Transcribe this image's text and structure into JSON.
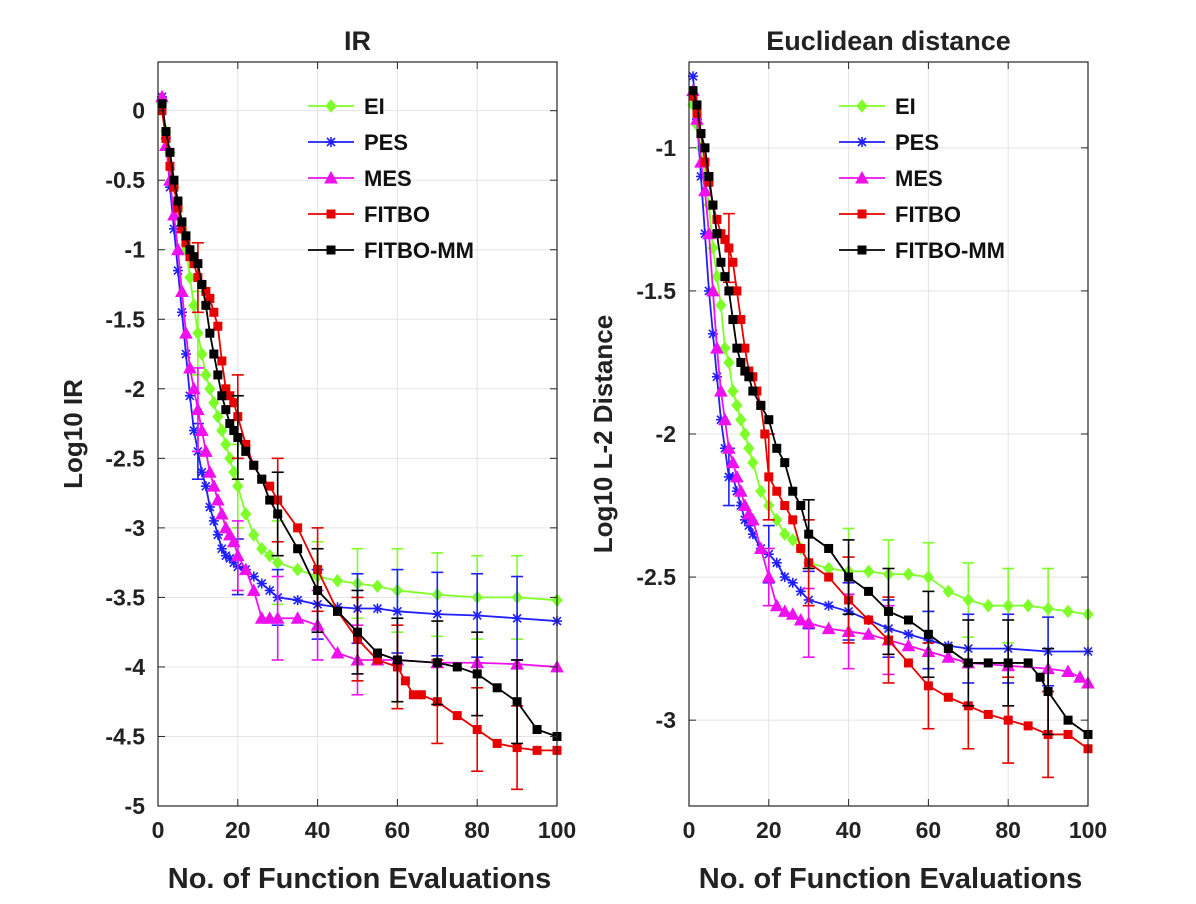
{
  "chart_data": [
    {
      "type": "line",
      "title": "IR",
      "xlabel": "No. of Function Evaluations",
      "ylabel": "Log10 IR",
      "xlim": [
        0,
        100
      ],
      "ylim": [
        -5,
        0.35
      ],
      "xticks": [
        0,
        20,
        40,
        60,
        80,
        100
      ],
      "yticks": [
        0,
        -0.5,
        -1,
        -1.5,
        -2,
        -2.5,
        -3,
        -3.5,
        -4,
        -4.5,
        -5
      ],
      "ytick_labels": [
        "0",
        "-0.5",
        "-1",
        "-1.5",
        "-2",
        "-2.5",
        "-3",
        "-3.5",
        "-4",
        "-4.5",
        "-5"
      ],
      "grid": true,
      "legend_position": "top-right",
      "series": [
        {
          "name": "EI",
          "color": "#7fff2a",
          "marker": "diamond",
          "x": [
            1,
            2,
            3,
            4,
            5,
            6,
            7,
            8,
            9,
            10,
            11,
            12,
            13,
            14,
            15,
            16,
            17,
            18,
            19,
            20,
            22,
            24,
            26,
            28,
            30,
            35,
            40,
            45,
            50,
            55,
            60,
            70,
            80,
            90,
            100
          ],
          "y": [
            0.05,
            -0.15,
            -0.3,
            -0.55,
            -0.7,
            -0.85,
            -1.0,
            -1.2,
            -1.4,
            -1.6,
            -1.75,
            -1.9,
            -2.0,
            -2.1,
            -2.2,
            -2.3,
            -2.4,
            -2.5,
            -2.6,
            -2.7,
            -2.9,
            -3.05,
            -3.15,
            -3.2,
            -3.25,
            -3.3,
            -3.35,
            -3.38,
            -3.4,
            -3.42,
            -3.45,
            -3.48,
            -3.5,
            -3.5,
            -3.52
          ],
          "error_x": [
            10,
            20,
            30,
            40,
            50,
            60,
            70,
            80,
            90
          ],
          "error_y": [
            0.3,
            0.3,
            0.3,
            0.25,
            0.25,
            0.3,
            0.3,
            0.3,
            0.3
          ]
        },
        {
          "name": "PES",
          "color": "#1f1fff",
          "marker": "asterisk",
          "x": [
            1,
            2,
            3,
            4,
            5,
            6,
            7,
            8,
            9,
            10,
            11,
            12,
            13,
            14,
            15,
            16,
            17,
            18,
            19,
            20,
            22,
            24,
            26,
            28,
            30,
            35,
            40,
            45,
            50,
            55,
            60,
            70,
            80,
            90,
            100
          ],
          "y": [
            0.1,
            -0.2,
            -0.55,
            -0.85,
            -1.15,
            -1.45,
            -1.75,
            -2.05,
            -2.3,
            -2.45,
            -2.6,
            -2.7,
            -2.85,
            -2.95,
            -3.05,
            -3.15,
            -3.2,
            -3.22,
            -3.25,
            -3.28,
            -3.3,
            -3.35,
            -3.4,
            -3.45,
            -3.5,
            -3.52,
            -3.55,
            -3.57,
            -3.58,
            -3.58,
            -3.6,
            -3.62,
            -3.63,
            -3.65,
            -3.67
          ],
          "error_x": [
            10,
            20,
            30,
            40,
            50,
            60,
            70,
            80,
            90
          ],
          "error_y": [
            0.2,
            0.2,
            0.2,
            0.25,
            0.25,
            0.3,
            0.3,
            0.3,
            0.3
          ]
        },
        {
          "name": "MES",
          "color": "#ee11ee",
          "marker": "triangle",
          "x": [
            1,
            2,
            3,
            4,
            5,
            6,
            7,
            8,
            9,
            10,
            11,
            12,
            13,
            14,
            15,
            16,
            17,
            18,
            19,
            20,
            22,
            24,
            26,
            28,
            30,
            35,
            40,
            45,
            50,
            55,
            60,
            70,
            80,
            90,
            100
          ],
          "y": [
            0.1,
            -0.25,
            -0.5,
            -0.75,
            -1.0,
            -1.3,
            -1.6,
            -1.85,
            -2.0,
            -2.15,
            -2.3,
            -2.45,
            -2.6,
            -2.7,
            -2.8,
            -2.9,
            -3.0,
            -3.05,
            -3.1,
            -3.2,
            -3.3,
            -3.45,
            -3.65,
            -3.65,
            -3.65,
            -3.65,
            -3.7,
            -3.9,
            -3.95,
            -3.95,
            -3.95,
            -3.97,
            -3.97,
            -3.98,
            -4.0
          ],
          "error_x": [
            10,
            20,
            30,
            40,
            50
          ],
          "error_y": [
            0.3,
            0.25,
            0.3,
            0.25,
            0.25
          ]
        },
        {
          "name": "FITBO",
          "color": "#e60000",
          "marker": "square",
          "x": [
            1,
            2,
            3,
            4,
            5,
            6,
            7,
            8,
            9,
            10,
            11,
            12,
            13,
            14,
            15,
            16,
            17,
            18,
            19,
            20,
            22,
            24,
            26,
            28,
            30,
            35,
            40,
            45,
            50,
            55,
            60,
            62,
            64,
            66,
            70,
            75,
            80,
            85,
            90,
            95,
            100
          ],
          "y": [
            0.0,
            -0.2,
            -0.4,
            -0.55,
            -0.7,
            -0.85,
            -0.95,
            -1.05,
            -1.1,
            -1.2,
            -1.25,
            -1.3,
            -1.35,
            -1.45,
            -1.55,
            -1.8,
            -2.0,
            -2.05,
            -2.1,
            -2.2,
            -2.4,
            -2.55,
            -2.65,
            -2.7,
            -2.8,
            -3.0,
            -3.3,
            -3.6,
            -3.8,
            -3.95,
            -4.0,
            -4.1,
            -4.2,
            -4.2,
            -4.25,
            -4.35,
            -4.45,
            -4.55,
            -4.58,
            -4.6,
            -4.6
          ],
          "error_x": [
            10,
            20,
            30,
            40,
            50,
            60,
            70,
            80,
            90
          ],
          "error_y": [
            0.25,
            0.3,
            0.3,
            0.3,
            0.3,
            0.3,
            0.3,
            0.3,
            0.3
          ]
        },
        {
          "name": "FITBO-MM",
          "color": "#000000",
          "marker": "square",
          "x": [
            1,
            2,
            3,
            4,
            5,
            6,
            7,
            8,
            9,
            10,
            11,
            12,
            13,
            14,
            15,
            16,
            17,
            18,
            19,
            20,
            22,
            24,
            26,
            28,
            30,
            35,
            40,
            45,
            50,
            55,
            60,
            70,
            75,
            80,
            85,
            90,
            95,
            100
          ],
          "y": [
            0.05,
            -0.15,
            -0.3,
            -0.5,
            -0.65,
            -0.8,
            -0.9,
            -1.0,
            -1.05,
            -1.1,
            -1.25,
            -1.4,
            -1.6,
            -1.75,
            -1.9,
            -2.05,
            -2.15,
            -2.25,
            -2.3,
            -2.35,
            -2.45,
            -2.55,
            -2.65,
            -2.8,
            -2.9,
            -3.15,
            -3.45,
            -3.6,
            -3.75,
            -3.9,
            -3.95,
            -3.97,
            -4.0,
            -4.05,
            -4.15,
            -4.25,
            -4.45,
            -4.5
          ],
          "error_x": [
            20,
            30,
            40,
            50,
            60,
            70,
            80,
            90
          ],
          "error_y": [
            0.3,
            0.3,
            0.3,
            0.3,
            0.3,
            0.3,
            0.3,
            0.3
          ]
        }
      ]
    },
    {
      "type": "line",
      "title": "Euclidean distance",
      "xlabel": "No. of Function Evaluations",
      "ylabel": "Log10 L-2 Distance",
      "xlim": [
        0,
        100
      ],
      "ylim": [
        -3.3,
        -0.7
      ],
      "xticks": [
        0,
        20,
        40,
        60,
        80,
        100
      ],
      "yticks": [
        -1,
        -1.5,
        -2,
        -2.5,
        -3
      ],
      "ytick_labels": [
        "-1",
        "-1.5",
        "-2",
        "-2.5",
        "-3"
      ],
      "grid": true,
      "legend_position": "top-right",
      "series": [
        {
          "name": "EI",
          "color": "#7fff2a",
          "marker": "diamond",
          "x": [
            1,
            2,
            3,
            4,
            5,
            6,
            7,
            8,
            9,
            10,
            11,
            12,
            13,
            14,
            15,
            16,
            18,
            20,
            22,
            24,
            26,
            28,
            30,
            35,
            40,
            45,
            50,
            55,
            60,
            65,
            70,
            75,
            80,
            85,
            90,
            95,
            100
          ],
          "y": [
            -0.85,
            -0.92,
            -1.0,
            -1.1,
            -1.2,
            -1.35,
            -1.45,
            -1.55,
            -1.7,
            -1.75,
            -1.85,
            -1.9,
            -1.95,
            -2.0,
            -2.05,
            -2.1,
            -2.2,
            -2.25,
            -2.3,
            -2.35,
            -2.37,
            -2.4,
            -2.45,
            -2.47,
            -2.48,
            -2.48,
            -2.49,
            -2.49,
            -2.5,
            -2.55,
            -2.58,
            -2.6,
            -2.6,
            -2.6,
            -2.61,
            -2.62,
            -2.63
          ],
          "error_x": [
            40,
            50,
            60,
            70,
            80,
            90
          ],
          "error_y": [
            0.15,
            0.12,
            0.12,
            0.13,
            0.13,
            0.14
          ]
        },
        {
          "name": "PES",
          "color": "#1f1fff",
          "marker": "asterisk",
          "x": [
            1,
            2,
            3,
            4,
            5,
            6,
            7,
            8,
            9,
            10,
            11,
            12,
            13,
            14,
            15,
            16,
            18,
            20,
            22,
            24,
            26,
            28,
            30,
            35,
            40,
            45,
            50,
            55,
            60,
            65,
            70,
            80,
            90,
            100
          ],
          "y": [
            -0.75,
            -0.9,
            -1.1,
            -1.3,
            -1.5,
            -1.65,
            -1.8,
            -1.95,
            -2.05,
            -2.15,
            -2.15,
            -2.2,
            -2.25,
            -2.3,
            -2.32,
            -2.35,
            -2.4,
            -2.42,
            -2.45,
            -2.5,
            -2.52,
            -2.55,
            -2.58,
            -2.6,
            -2.62,
            -2.65,
            -2.68,
            -2.7,
            -2.72,
            -2.74,
            -2.75,
            -2.75,
            -2.76,
            -2.76
          ],
          "error_x": [
            10,
            20,
            30,
            40,
            50,
            60,
            70,
            80,
            90
          ],
          "error_y": [
            0.1,
            0.1,
            0.1,
            0.1,
            0.1,
            0.1,
            0.12,
            0.12,
            0.12
          ]
        },
        {
          "name": "MES",
          "color": "#ee11ee",
          "marker": "triangle",
          "x": [
            1,
            2,
            3,
            4,
            5,
            6,
            7,
            8,
            9,
            10,
            11,
            12,
            13,
            14,
            15,
            16,
            18,
            20,
            22,
            24,
            26,
            28,
            30,
            35,
            40,
            45,
            50,
            55,
            60,
            65,
            70,
            80,
            90,
            95,
            98,
            100
          ],
          "y": [
            -0.8,
            -0.9,
            -1.05,
            -1.15,
            -1.3,
            -1.5,
            -1.7,
            -1.85,
            -1.95,
            -2.05,
            -2.1,
            -2.15,
            -2.2,
            -2.25,
            -2.28,
            -2.3,
            -2.4,
            -2.5,
            -2.6,
            -2.62,
            -2.63,
            -2.65,
            -2.66,
            -2.68,
            -2.69,
            -2.7,
            -2.72,
            -2.74,
            -2.76,
            -2.78,
            -2.8,
            -2.81,
            -2.82,
            -2.83,
            -2.85,
            -2.87
          ],
          "error_x": [
            20,
            30,
            40,
            50
          ],
          "error_y": [
            0.1,
            0.12,
            0.13,
            0.12
          ]
        },
        {
          "name": "FITBO",
          "color": "#e60000",
          "marker": "square",
          "x": [
            1,
            2,
            3,
            4,
            5,
            6,
            7,
            8,
            9,
            10,
            11,
            12,
            13,
            14,
            15,
            16,
            17,
            18,
            19,
            20,
            22,
            24,
            26,
            28,
            30,
            35,
            40,
            45,
            50,
            55,
            60,
            65,
            70,
            75,
            80,
            85,
            90,
            95,
            100
          ],
          "y": [
            -0.82,
            -0.88,
            -0.95,
            -1.05,
            -1.12,
            -1.2,
            -1.25,
            -1.3,
            -1.32,
            -1.35,
            -1.4,
            -1.5,
            -1.6,
            -1.7,
            -1.78,
            -1.8,
            -1.85,
            -1.9,
            -2.0,
            -2.15,
            -2.2,
            -2.25,
            -2.3,
            -2.4,
            -2.45,
            -2.5,
            -2.58,
            -2.65,
            -2.72,
            -2.8,
            -2.88,
            -2.92,
            -2.95,
            -2.98,
            -3.0,
            -3.02,
            -3.05,
            -3.05,
            -3.1
          ],
          "error_x": [
            10,
            20,
            30,
            40,
            50,
            60,
            70,
            80,
            90
          ],
          "error_y": [
            0.12,
            0.15,
            0.15,
            0.15,
            0.15,
            0.15,
            0.15,
            0.15,
            0.15
          ]
        },
        {
          "name": "FITBO-MM",
          "color": "#000000",
          "marker": "square",
          "x": [
            1,
            2,
            3,
            4,
            5,
            6,
            7,
            8,
            9,
            10,
            11,
            12,
            13,
            14,
            15,
            16,
            18,
            20,
            22,
            24,
            26,
            28,
            30,
            35,
            40,
            45,
            50,
            55,
            60,
            65,
            70,
            75,
            80,
            85,
            88,
            90,
            95,
            100
          ],
          "y": [
            -0.8,
            -0.85,
            -0.95,
            -1.0,
            -1.1,
            -1.2,
            -1.3,
            -1.4,
            -1.45,
            -1.5,
            -1.6,
            -1.7,
            -1.75,
            -1.78,
            -1.8,
            -1.85,
            -1.9,
            -1.95,
            -2.05,
            -2.1,
            -2.2,
            -2.25,
            -2.35,
            -2.4,
            -2.5,
            -2.55,
            -2.62,
            -2.65,
            -2.7,
            -2.75,
            -2.8,
            -2.8,
            -2.8,
            -2.8,
            -2.85,
            -2.9,
            -3.0,
            -3.05
          ],
          "error_x": [
            30,
            40,
            50,
            60,
            70,
            80,
            90
          ],
          "error_y": [
            0.12,
            0.13,
            0.15,
            0.15,
            0.15,
            0.15,
            0.15
          ]
        }
      ]
    }
  ]
}
